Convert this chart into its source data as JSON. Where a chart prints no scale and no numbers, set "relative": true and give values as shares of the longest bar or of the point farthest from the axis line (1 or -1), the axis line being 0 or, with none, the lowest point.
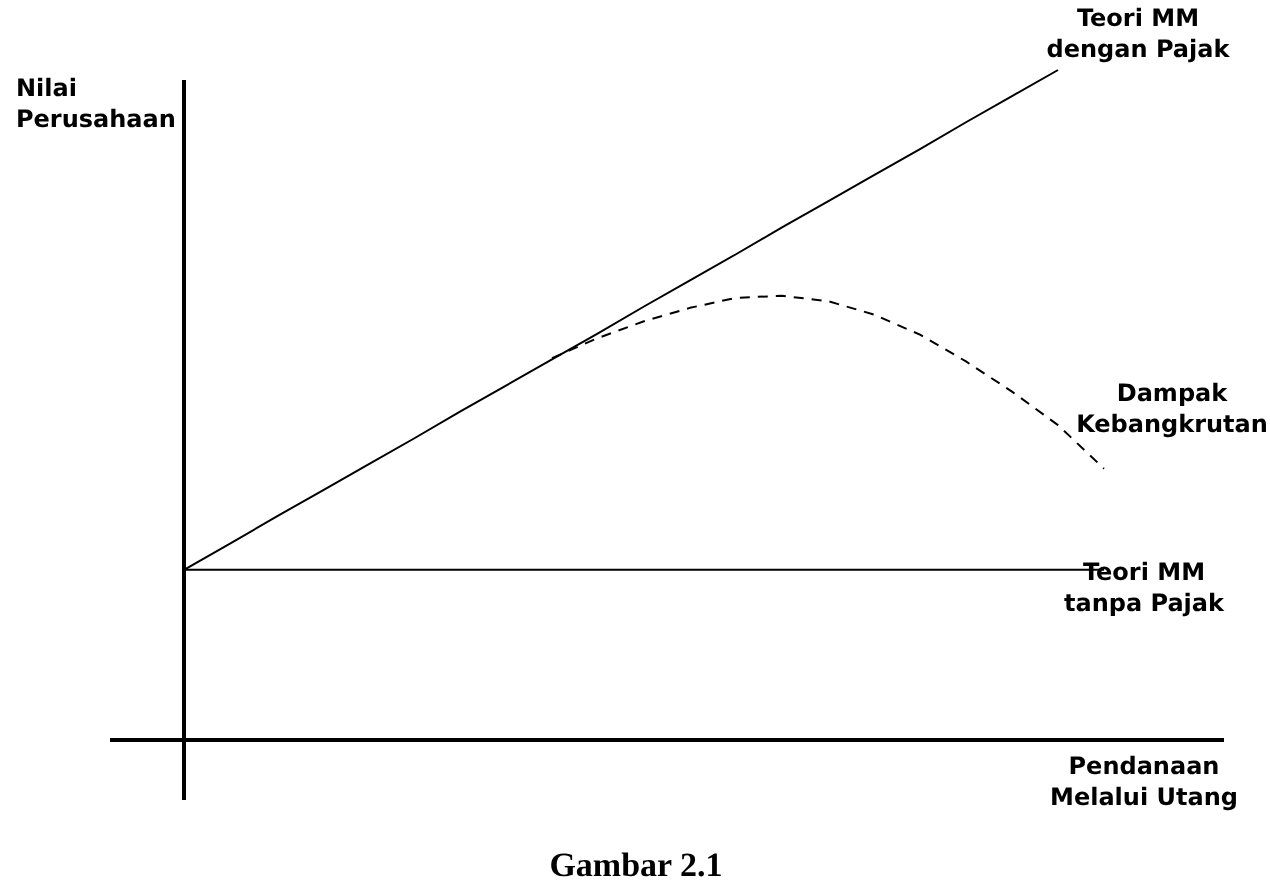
{
  "chart_data": {
    "type": "line",
    "title": "Gambar 2.1",
    "xlabel": "Pendanaan\nMelalui Utang",
    "ylabel": "Nilai\nPerusahaan",
    "relative": true,
    "marker": "none",
    "grid": false,
    "categories": [
      null,
      null,
      null,
      null,
      null,
      null,
      null,
      null,
      null,
      null,
      null,
      null,
      null,
      null,
      null,
      null,
      null,
      null,
      null,
      null,
      null
    ],
    "series": [
      {
        "name": "Teori MM\ndengan Pajak",
        "color": "#000000",
        "line_style": "solid",
        "values": [
          0.254,
          0.293,
          0.333,
          0.372,
          0.411,
          0.45,
          0.49,
          0.529,
          0.568,
          0.607,
          0.647,
          0.686,
          0.725,
          0.765,
          0.804,
          0.843,
          0.882,
          0.922,
          0.961,
          1.0,
          null
        ]
      },
      {
        "name": "Dampak\nKebangkrutan",
        "color": "#000000",
        "line_style": "dashed",
        "values": [
          null,
          null,
          null,
          null,
          null,
          null,
          null,
          null,
          0.57,
          0.6,
          0.625,
          0.645,
          0.66,
          0.663,
          0.655,
          0.635,
          0.605,
          0.565,
          0.52,
          0.47,
          0.405
        ]
      },
      {
        "name": "Teori MM\ntanpa Pajak",
        "color": "#000000",
        "line_style": "solid",
        "values": [
          0.254,
          0.254,
          0.254,
          0.254,
          0.254,
          0.254,
          0.254,
          0.254,
          0.254,
          0.254,
          0.254,
          0.254,
          0.254,
          0.254,
          0.254,
          0.254,
          0.254,
          0.254,
          0.254,
          0.254,
          0.254
        ]
      }
    ]
  }
}
